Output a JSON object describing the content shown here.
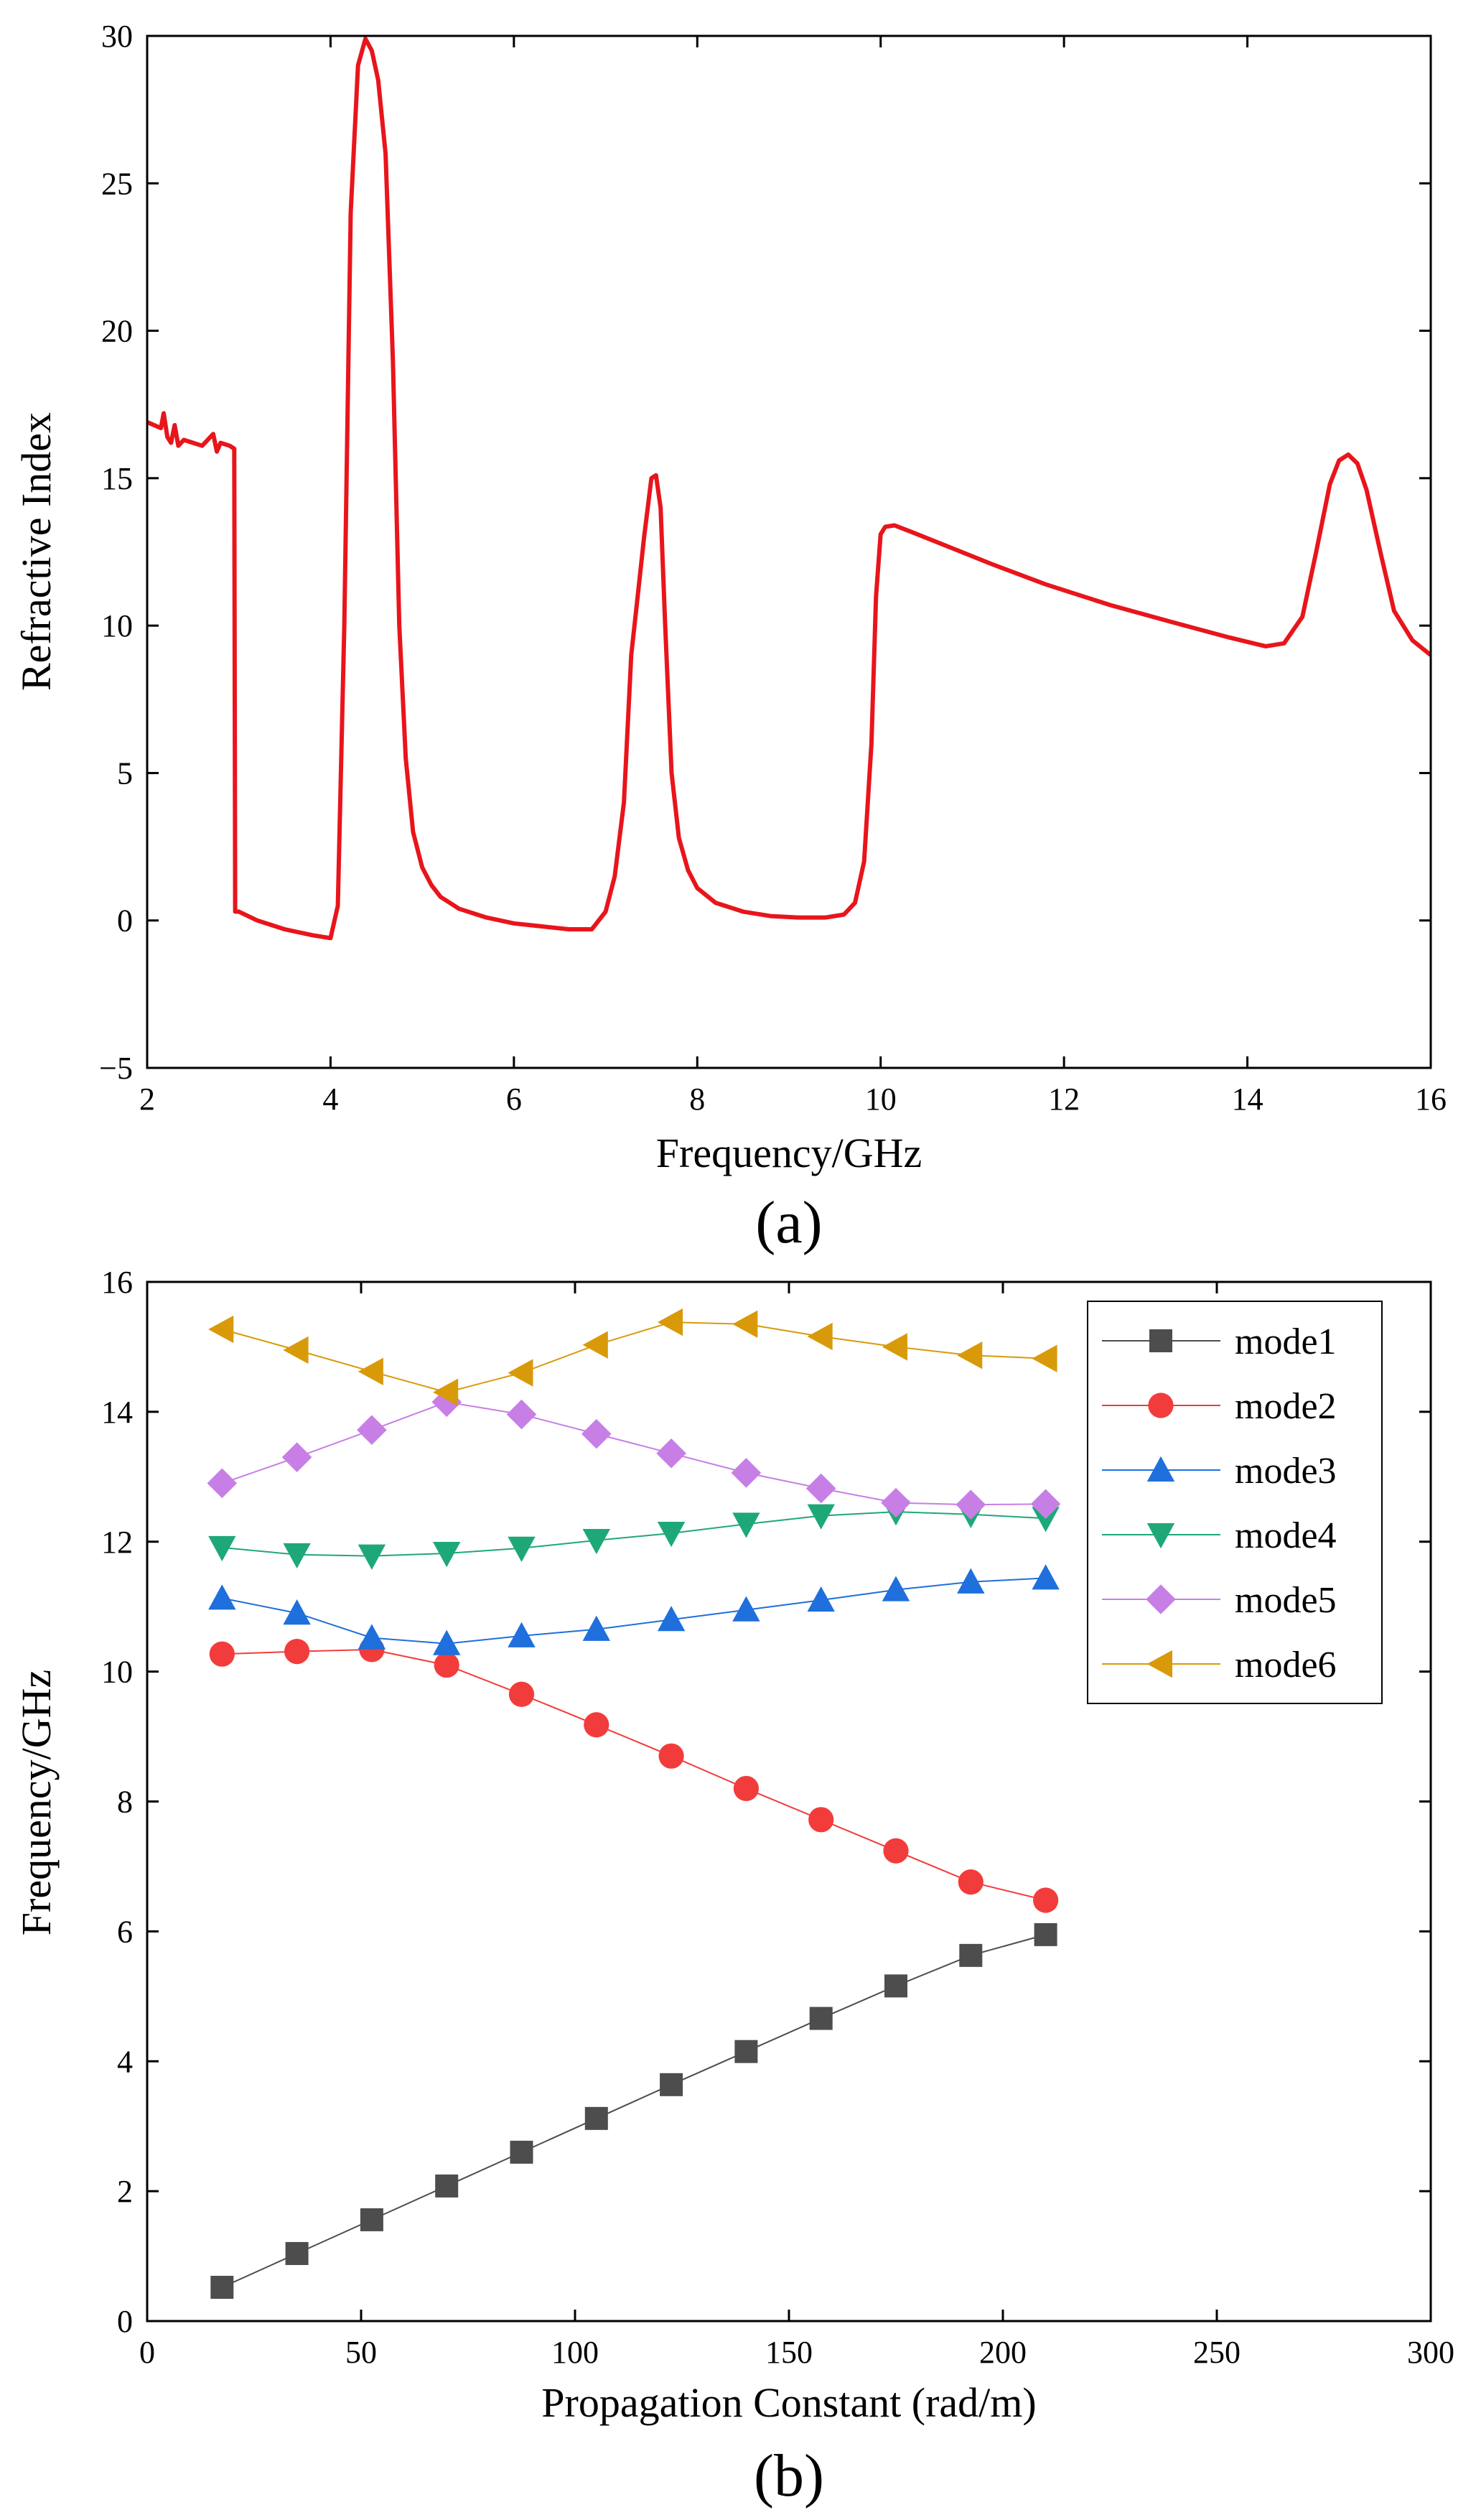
{
  "chart_data": [
    {
      "type": "line",
      "panel_label": "(a)",
      "xlabel": "Frequency/GHz",
      "ylabel": "Refractive Index",
      "xlim": [
        2,
        16
      ],
      "ylim": [
        -5,
        30
      ],
      "xticks": [
        2,
        4,
        6,
        8,
        10,
        12,
        14,
        16
      ],
      "yticks": [
        -5,
        0,
        5,
        10,
        15,
        20,
        25,
        30
      ],
      "ytick_labels": [
        "−5",
        "0",
        "5",
        "10",
        "15",
        "20",
        "25",
        "30"
      ],
      "series": [
        {
          "name": "Refractive Index",
          "color": "#e8151b",
          "x": [
            2.0,
            2.15,
            2.18,
            2.22,
            2.26,
            2.3,
            2.34,
            2.4,
            2.5,
            2.6,
            2.72,
            2.76,
            2.8,
            2.9,
            2.95,
            2.96,
            3.0,
            3.2,
            3.5,
            3.8,
            4.0,
            4.08,
            4.15,
            4.22,
            4.3,
            4.38,
            4.45,
            4.52,
            4.6,
            4.68,
            4.75,
            4.82,
            4.9,
            5.0,
            5.1,
            5.2,
            5.4,
            5.7,
            6.0,
            6.3,
            6.6,
            6.85,
            7.0,
            7.1,
            7.2,
            7.28,
            7.35,
            7.42,
            7.5,
            7.55,
            7.6,
            7.65,
            7.72,
            7.8,
            7.9,
            8.0,
            8.2,
            8.5,
            8.8,
            9.1,
            9.4,
            9.6,
            9.72,
            9.82,
            9.9,
            9.95,
            10.0,
            10.05,
            10.15,
            10.4,
            10.8,
            11.2,
            11.8,
            12.5,
            13.2,
            13.8,
            14.2,
            14.4,
            14.6,
            14.75,
            14.9,
            15.0,
            15.1,
            15.2,
            15.3,
            15.45,
            15.6,
            15.8,
            16.0
          ],
          "values": [
            16.9,
            16.7,
            17.2,
            16.4,
            16.2,
            16.8,
            16.1,
            16.3,
            16.2,
            16.1,
            16.5,
            15.9,
            16.2,
            16.1,
            16.0,
            0.3,
            0.3,
            0.0,
            -0.3,
            -0.5,
            -0.6,
            0.5,
            10.0,
            24.0,
            29.0,
            29.9,
            29.5,
            28.5,
            26.0,
            19.0,
            10.0,
            5.5,
            3.0,
            1.8,
            1.2,
            0.8,
            0.4,
            0.1,
            -0.1,
            -0.2,
            -0.3,
            -0.3,
            0.3,
            1.5,
            4.0,
            9.0,
            11.0,
            13.0,
            15.0,
            15.1,
            14.0,
            10.0,
            5.0,
            2.8,
            1.7,
            1.1,
            0.6,
            0.3,
            0.15,
            0.1,
            0.1,
            0.2,
            0.6,
            2.0,
            6.0,
            11.0,
            13.1,
            13.35,
            13.4,
            13.1,
            12.6,
            12.1,
            11.4,
            10.7,
            10.1,
            9.6,
            9.3,
            9.4,
            10.3,
            12.5,
            14.8,
            15.6,
            15.8,
            15.5,
            14.6,
            12.5,
            10.5,
            9.5,
            9.0
          ]
        }
      ]
    },
    {
      "type": "scatter",
      "panel_label": "(b)",
      "xlabel": "Propagation Constant (rad/m)",
      "ylabel": "Frequency/GHz",
      "xlim": [
        0,
        300
      ],
      "ylim": [
        0,
        16
      ],
      "xticks": [
        0,
        50,
        100,
        150,
        200,
        250,
        300
      ],
      "yticks": [
        0,
        2,
        4,
        6,
        8,
        10,
        12,
        14,
        16
      ],
      "legend_position": "top-right",
      "x": [
        17.5,
        35,
        52.5,
        70,
        87.5,
        105,
        122.5,
        140,
        157.5,
        175,
        192.5,
        210
      ],
      "series": [
        {
          "name": "mode1",
          "marker": "square",
          "color": "#4d4d4d",
          "values": [
            0.52,
            1.04,
            1.56,
            2.08,
            2.6,
            3.12,
            3.64,
            4.15,
            4.66,
            5.16,
            5.63,
            5.95
          ]
        },
        {
          "name": "mode2",
          "marker": "circle",
          "color": "#f23c3c",
          "values": [
            10.27,
            10.31,
            10.34,
            10.1,
            9.65,
            9.18,
            8.7,
            8.2,
            7.72,
            7.24,
            6.76,
            6.48
          ]
        },
        {
          "name": "mode3",
          "marker": "triangle-up",
          "color": "#1f6fdc",
          "values": [
            11.13,
            10.9,
            10.52,
            10.43,
            10.55,
            10.65,
            10.8,
            10.95,
            11.1,
            11.26,
            11.38,
            11.44
          ]
        },
        {
          "name": "mode4",
          "marker": "triangle-down",
          "color": "#1ea878",
          "values": [
            11.91,
            11.8,
            11.78,
            11.82,
            11.9,
            12.02,
            12.13,
            12.27,
            12.4,
            12.46,
            12.42,
            12.36
          ]
        },
        {
          "name": "mode5",
          "marker": "diamond",
          "color": "#c77fe6",
          "values": [
            12.9,
            13.3,
            13.72,
            14.15,
            13.96,
            13.66,
            13.36,
            13.06,
            12.82,
            12.6,
            12.57,
            12.58
          ]
        },
        {
          "name": "mode6",
          "marker": "triangle-left",
          "color": "#d99a0a",
          "values": [
            15.27,
            14.95,
            14.62,
            14.3,
            14.6,
            15.03,
            15.38,
            15.35,
            15.16,
            15.0,
            14.87,
            14.82
          ]
        }
      ]
    }
  ]
}
